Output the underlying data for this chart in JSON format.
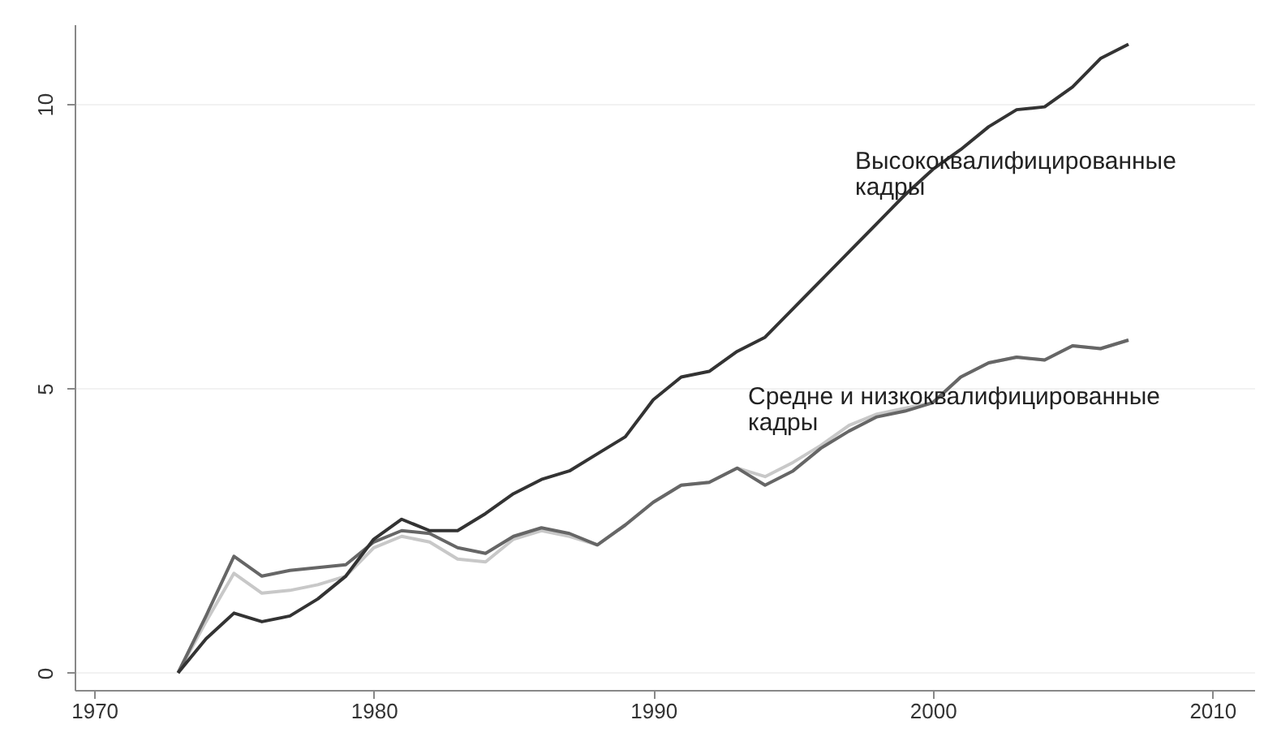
{
  "chart_data": {
    "type": "line",
    "x": [
      1973,
      1974,
      1975,
      1976,
      1977,
      1978,
      1979,
      1980,
      1981,
      1982,
      1983,
      1984,
      1985,
      1986,
      1987,
      1988,
      1989,
      1990,
      1991,
      1992,
      1993,
      1994,
      1995,
      1996,
      1997,
      1998,
      1999,
      2000,
      2001,
      2002,
      2003,
      2004,
      2005,
      2006,
      2007
    ],
    "series": [
      {
        "color": "#c8c8c8",
        "values": [
          0,
          0.9,
          1.75,
          1.4,
          1.45,
          1.55,
          1.7,
          2.2,
          2.4,
          2.3,
          2.0,
          1.95,
          2.35,
          2.5,
          2.4,
          2.25,
          2.6,
          3.0,
          3.3,
          3.35,
          3.6,
          3.45,
          3.7,
          4.0,
          4.35,
          4.55,
          4.65,
          4.75,
          5.2,
          5.45,
          5.55,
          5.5,
          5.75,
          5.7,
          5.85
        ]
      },
      {
        "color": "#666666",
        "values": [
          0,
          1.0,
          2.05,
          1.7,
          1.8,
          1.85,
          1.9,
          2.3,
          2.5,
          2.45,
          2.2,
          2.1,
          2.4,
          2.55,
          2.45,
          2.25,
          2.6,
          3.0,
          3.3,
          3.35,
          3.6,
          3.3,
          3.55,
          3.95,
          4.25,
          4.5,
          4.6,
          4.75,
          5.2,
          5.45,
          5.55,
          5.5,
          5.75,
          5.7,
          5.85
        ]
      },
      {
        "color": "#333333",
        "values": [
          0,
          0.6,
          1.05,
          0.9,
          1.0,
          1.3,
          1.7,
          2.35,
          2.7,
          2.5,
          2.5,
          2.8,
          3.15,
          3.4,
          3.55,
          3.85,
          4.15,
          4.8,
          5.2,
          5.3,
          5.65,
          5.9,
          6.4,
          6.9,
          7.4,
          7.9,
          8.4,
          8.85,
          9.2,
          9.6,
          9.9,
          9.95,
          10.3,
          10.8,
          11.05
        ]
      }
    ],
    "xlim": [
      1969.3,
      2011.5
    ],
    "xticks": [
      1970,
      1980,
      1990,
      2000,
      2010
    ],
    "ylim": [
      -0.3,
      11.4
    ],
    "yticks": [
      0,
      5,
      10
    ],
    "grid": "y",
    "marker": "none",
    "line_style": "solid",
    "annotations": [
      "Высококвалифицированные\nкадры",
      "Средне и низкоквалифицированные\nкадры"
    ]
  }
}
